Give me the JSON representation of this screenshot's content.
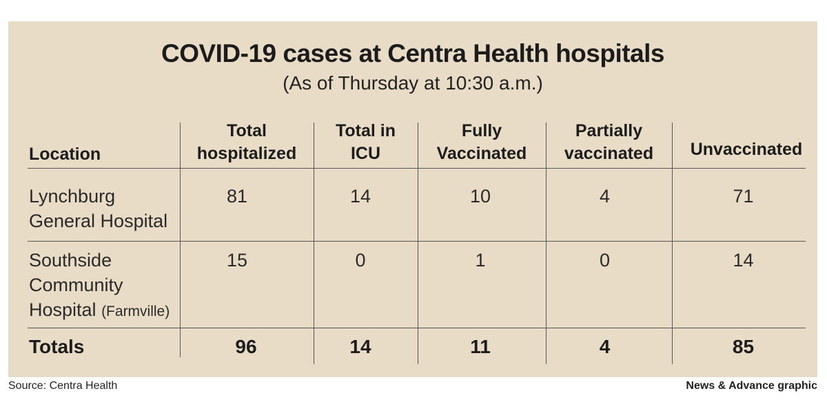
{
  "title": "COVID-19 cases at Centra Health hospitals",
  "subtitle": "(As of Thursday at 10:30 a.m.)",
  "source": "Source: Centra Health",
  "credit": "News & Advance graphic",
  "chart_data": {
    "type": "table",
    "title": "COVID-19 cases at Centra Health hospitals",
    "subtitle": "(As of Thursday at 10:30 a.m.)",
    "columns": [
      "Location",
      "Total hospitalized",
      "Total in ICU",
      "Fully Vaccinated",
      "Partially vaccinated",
      "Unvaccinated"
    ],
    "header_lines": [
      [
        "Location"
      ],
      [
        "Total",
        "hospitalized"
      ],
      [
        "Total in",
        "ICU"
      ],
      [
        "Fully",
        "Vaccinated"
      ],
      [
        "Partially",
        "vaccinated"
      ],
      [
        "Unvaccinated"
      ]
    ],
    "rows": [
      {
        "location_lines": [
          "Lynchburg",
          "General Hospital"
        ],
        "location_note": "",
        "values": [
          "81",
          "14",
          "10",
          "4",
          "71"
        ]
      },
      {
        "location_lines": [
          "Southside",
          "Community",
          "Hospital"
        ],
        "location_note": "(Farmville)",
        "values": [
          "15",
          "0",
          "1",
          "0",
          "14"
        ]
      }
    ],
    "totals": {
      "label": "Totals",
      "values": [
        "96",
        "14",
        "11",
        "4",
        "85"
      ]
    }
  }
}
